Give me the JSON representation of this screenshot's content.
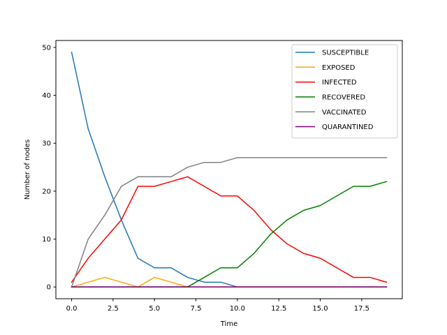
{
  "chart_data": {
    "type": "line",
    "title": "",
    "xlabel": "Time",
    "ylabel": "Number of nodes",
    "xlim": [
      -0.95,
      19.95
    ],
    "ylim": [
      -2.45,
      51.45
    ],
    "xticks": [
      0,
      2.5,
      5,
      7.5,
      10,
      12.5,
      15,
      17.5
    ],
    "xtick_labels": [
      "0.0",
      "2.5",
      "5.0",
      "7.5",
      "10.0",
      "12.5",
      "15.0",
      "17.5"
    ],
    "yticks": [
      0,
      10,
      20,
      30,
      40,
      50
    ],
    "ytick_labels": [
      "0",
      "10",
      "20",
      "30",
      "40",
      "50"
    ],
    "grid": false,
    "legend_position": "top-right",
    "x": [
      0,
      1,
      2,
      3,
      4,
      5,
      6,
      7,
      8,
      9,
      10,
      11,
      12,
      13,
      14,
      15,
      16,
      17,
      18,
      19
    ],
    "series": [
      {
        "name": "SUSCEPTIBLE",
        "color": "#1f77b4",
        "values": [
          49,
          33,
          23,
          14,
          6,
          4,
          4,
          2,
          1,
          1,
          0,
          0,
          0,
          0,
          0,
          0,
          0,
          0,
          0,
          0
        ]
      },
      {
        "name": "EXPOSED",
        "color": "#ffa500",
        "values": [
          0,
          1,
          2,
          1,
          0,
          2,
          1,
          0,
          0,
          0,
          0,
          0,
          0,
          0,
          0,
          0,
          0,
          0,
          0,
          0
        ]
      },
      {
        "name": "INFECTED",
        "color": "#ff0000",
        "values": [
          1,
          6,
          10,
          14,
          21,
          21,
          22,
          23,
          21,
          19,
          19,
          16,
          12,
          9,
          7,
          6,
          4,
          2,
          2,
          1
        ]
      },
      {
        "name": "RECOVERED",
        "color": "#008000",
        "values": [
          0,
          0,
          0,
          0,
          0,
          0,
          0,
          0,
          2,
          4,
          4,
          7,
          11,
          14,
          16,
          17,
          19,
          21,
          21,
          22
        ]
      },
      {
        "name": "VACCINATED",
        "color": "#808080",
        "values": [
          0,
          10,
          15,
          21,
          23,
          23,
          23,
          25,
          26,
          26,
          27,
          27,
          27,
          27,
          27,
          27,
          27,
          27,
          27,
          27
        ]
      },
      {
        "name": "QUARANTINED",
        "color": "#800080",
        "values": [
          0,
          0,
          0,
          0,
          0,
          0,
          0,
          0,
          0,
          0,
          0,
          0,
          0,
          0,
          0,
          0,
          0,
          0,
          0,
          0
        ]
      }
    ]
  }
}
